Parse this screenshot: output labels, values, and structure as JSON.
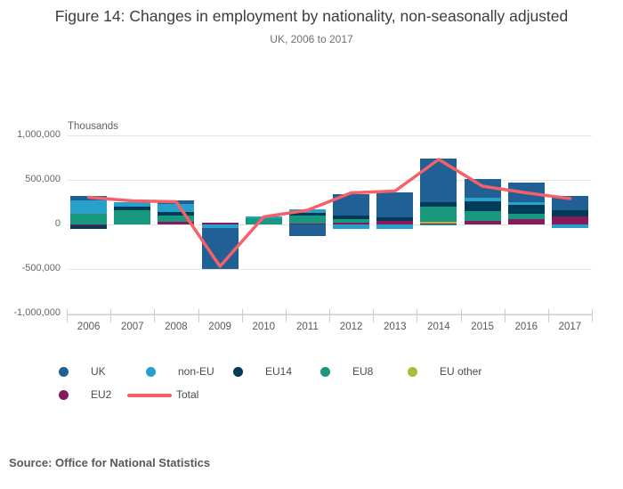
{
  "figure": {
    "title": "Figure 14: Changes in employment by nationality, non-seasonally adjusted",
    "subtitle": "UK, 2006 to 2017",
    "source": "Source: Office for National Statistics"
  },
  "chart_data": {
    "type": "bar",
    "subtype": "stacked-column-with-line",
    "title": "Figure 14: Changes in employment by nationality, non-seasonally adjusted",
    "subtitle": "UK, 2006 to 2017",
    "unit_label": "Thousands",
    "grid": true,
    "legend_position": "bottom",
    "categories": [
      "2006",
      "2007",
      "2008",
      "2009",
      "2010",
      "2011",
      "2012",
      "2013",
      "2014",
      "2015",
      "2016",
      "2017"
    ],
    "y_axis": {
      "min": -1000000,
      "max": 1000000,
      "ticks": [
        {
          "value": 1000000,
          "label": "1,000,000"
        },
        {
          "value": 500000,
          "label": "500,000"
        },
        {
          "value": 0,
          "label": "0"
        },
        {
          "value": -500000,
          "label": "-500,000"
        },
        {
          "value": -1000000,
          "label": "-1,000,000"
        }
      ]
    },
    "series": [
      {
        "name": "UK",
        "color": "#206095",
        "values": [
          50000,
          0,
          45000,
          -455000,
          0,
          -130000,
          235000,
          275000,
          490000,
          210000,
          215000,
          155000
        ]
      },
      {
        "name": "non-EU",
        "color": "#27A0CC",
        "values": [
          150000,
          55000,
          90000,
          -40000,
          20000,
          40000,
          -50000,
          -45000,
          -10000,
          45000,
          35000,
          -35000
        ]
      },
      {
        "name": "EU14",
        "color": "#003C57",
        "values": [
          -35000,
          40000,
          40000,
          0,
          0,
          30000,
          40000,
          45000,
          50000,
          105000,
          100000,
          75000
        ]
      },
      {
        "name": "EU8",
        "color": "#18997F",
        "values": [
          120000,
          160000,
          70000,
          0,
          75000,
          85000,
          40000,
          0,
          165000,
          115000,
          55000,
          0
        ]
      },
      {
        "name": "EU other",
        "color": "#A8BD3A",
        "values": [
          0,
          0,
          0,
          0,
          0,
          0,
          0,
          0,
          20000,
          0,
          0,
          0
        ]
      },
      {
        "name": "EU2",
        "color": "#871A5B",
        "values": [
          -12000,
          0,
          30000,
          25000,
          0,
          15000,
          25000,
          40000,
          15000,
          40000,
          65000,
          90000
        ]
      }
    ],
    "line_series": {
      "name": "Total",
      "color": "#F66068",
      "values": [
        305000,
        265000,
        255000,
        -470000,
        85000,
        160000,
        355000,
        375000,
        730000,
        430000,
        355000,
        290000
      ]
    }
  },
  "legend": {
    "rows": [
      [
        {
          "label": "UK",
          "color": "#206095",
          "swatch": "dot"
        },
        {
          "label": "non-EU",
          "color": "#27A0CC",
          "swatch": "dot"
        },
        {
          "label": "EU14",
          "color": "#003C57",
          "swatch": "dot"
        },
        {
          "label": "EU8",
          "color": "#18997F",
          "swatch": "dot"
        },
        {
          "label": "EU other",
          "color": "#A8BD3A",
          "swatch": "dot"
        }
      ],
      [
        {
          "label": "EU2",
          "color": "#871A5B",
          "swatch": "dot"
        },
        {
          "label": "Total",
          "color": "#F66068",
          "swatch": "line"
        }
      ]
    ]
  }
}
